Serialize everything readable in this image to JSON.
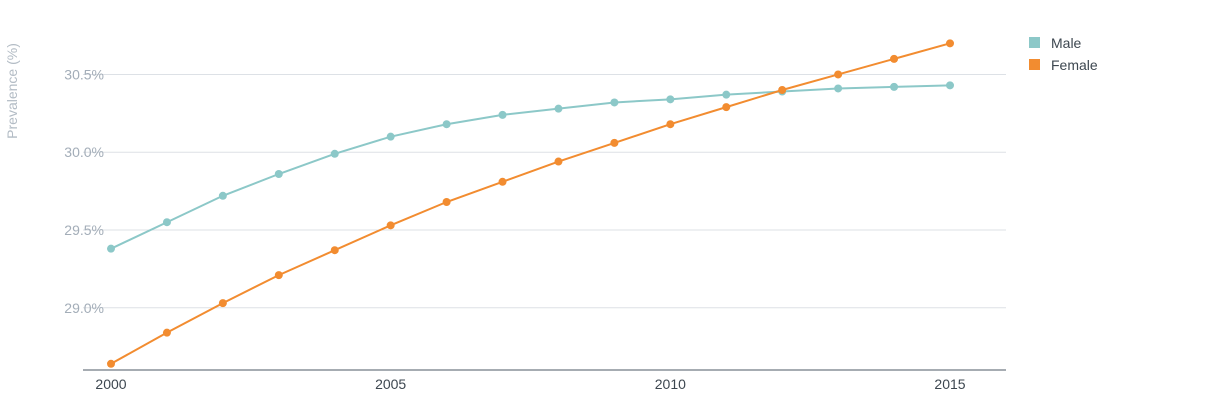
{
  "chart_data": {
    "type": "line",
    "title": "",
    "xlabel": "",
    "ylabel": "Prevalence (%)",
    "x": [
      2000,
      2001,
      2002,
      2003,
      2004,
      2005,
      2006,
      2007,
      2008,
      2009,
      2010,
      2011,
      2012,
      2013,
      2014,
      2015
    ],
    "xlim": [
      2000,
      2016
    ],
    "ylim": [
      28.6,
      30.85
    ],
    "x_ticks": [
      {
        "value": 2000,
        "label": "2000"
      },
      {
        "value": 2005,
        "label": "2005"
      },
      {
        "value": 2010,
        "label": "2010"
      },
      {
        "value": 2015,
        "label": "2015"
      }
    ],
    "y_ticks": [
      {
        "value": 29.0,
        "label": "29.0%"
      },
      {
        "value": 29.5,
        "label": "29.5%"
      },
      {
        "value": 30.0,
        "label": "30.0%"
      },
      {
        "value": 30.5,
        "label": "30.5%"
      }
    ],
    "grid": true,
    "legend": "top-right",
    "series": [
      {
        "name": "Male",
        "color": "#8cc8c8",
        "values": [
          29.38,
          29.55,
          29.72,
          29.86,
          29.99,
          30.1,
          30.18,
          30.24,
          30.28,
          30.32,
          30.34,
          30.37,
          30.39,
          30.41,
          30.42,
          30.43
        ]
      },
      {
        "name": "Female",
        "color": "#f28c30",
        "values": [
          28.64,
          28.84,
          29.03,
          29.21,
          29.37,
          29.53,
          29.68,
          29.81,
          29.94,
          30.06,
          30.18,
          30.29,
          30.4,
          30.5,
          30.6,
          30.7
        ]
      }
    ]
  }
}
